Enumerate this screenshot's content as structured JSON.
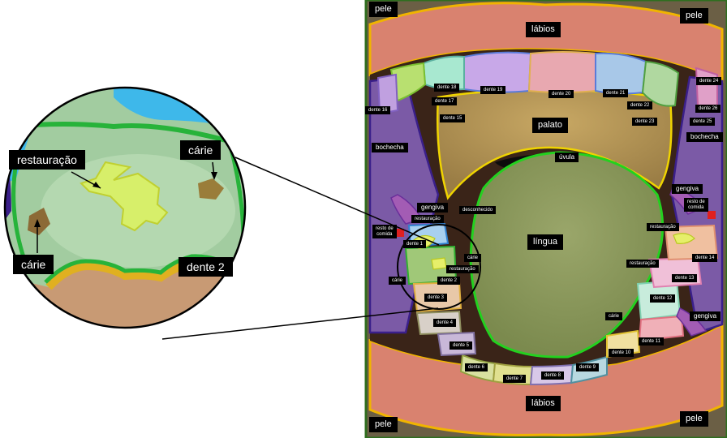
{
  "inset": {
    "restauracao": "restauração",
    "carie_top": "cárie",
    "carie_left": "cárie",
    "dente2": "dente 2"
  },
  "labels": {
    "pele_tl": "pele",
    "pele_tr": "pele",
    "pele_bl": "pele",
    "pele_br": "pele",
    "labios_top": "lábios",
    "labios_bottom": "lábios",
    "palato": "palato",
    "uvula": "úvula",
    "lingua": "língua",
    "bochecha_left": "bochecha",
    "bochecha_right": "bochecha",
    "gengiva_left": "gengiva",
    "gengiva_right_top": "gengiva",
    "gengiva_right_bottom": "gengiva",
    "desconhecido": "desconhecido",
    "resto_left": "resto de\ncomida",
    "resto_right": "resto de\ncomida",
    "restauracao_l1": "restauração",
    "restauracao_l2": "restauração",
    "restauracao_r1": "restauração",
    "restauracao_r2": "restauração",
    "carie_l1": "cárie",
    "carie_l2": "cárie",
    "carie_r": "cárie",
    "d1": "dente 1",
    "d2": "dente 2",
    "d3": "dente 3",
    "d4": "dente 4",
    "d5": "dente 5",
    "d6": "dente 6",
    "d7": "dente 7",
    "d8": "dente 8",
    "d9": "dente 9",
    "d10": "dente 10",
    "d11": "dente 11",
    "d12": "dente 12",
    "d13": "dente 13",
    "d14": "dente 14",
    "d15": "dente 15",
    "d16": "dente 16",
    "d17": "dente 17",
    "d18": "dente 18",
    "d19": "dente 19",
    "d20": "dente 20",
    "d21": "dente 21",
    "d22": "dente 22",
    "d23": "dente 23",
    "d24": "dente 24",
    "d25": "dente 25",
    "d26": "dente 26"
  },
  "colors": {
    "skin": "#6b5f45",
    "lips": "#d9826f",
    "lip_border": "#f0b400",
    "palate": "#b89a58",
    "tongue": "#8a9a5c",
    "tongue_border": "#23d11f",
    "cheek": "#7b5aa6",
    "cheek_border": "#3a1f8a",
    "gum": "#a35cb4"
  }
}
